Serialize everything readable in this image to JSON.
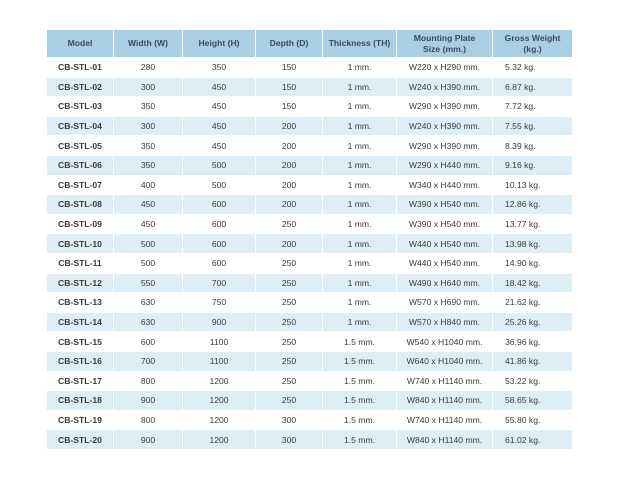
{
  "table": {
    "headers": {
      "model": "Model",
      "width": "Width (W)",
      "height": "Height (H)",
      "depth": "Depth (D)",
      "thickness": "Thickness (TH)",
      "mounting_line1": "Mounting Plate",
      "mounting_line2": "Size (mm.)",
      "weight_line1": "Gross Weight",
      "weight_line2": "(kg.)"
    },
    "rows": [
      {
        "model": "CB-STL-01",
        "width": "280",
        "height": "350",
        "depth": "150",
        "thickness": "1 mm.",
        "mounting": "W220 x H290 mm.",
        "weight": "5.32 kg."
      },
      {
        "model": "CB-STL-02",
        "width": "300",
        "height": "450",
        "depth": "150",
        "thickness": "1 mm.",
        "mounting": "W240 x H390 mm.",
        "weight": "6.87 kg."
      },
      {
        "model": "CB-STL-03",
        "width": "350",
        "height": "450",
        "depth": "150",
        "thickness": "1 mm.",
        "mounting": "W290 x H390 mm.",
        "weight": "7.72 kg."
      },
      {
        "model": "CB-STL-04",
        "width": "300",
        "height": "450",
        "depth": "200",
        "thickness": "1 mm.",
        "mounting": "W240 x H390 mm.",
        "weight": "7.55 kg."
      },
      {
        "model": "CB-STL-05",
        "width": "350",
        "height": "450",
        "depth": "200",
        "thickness": "1 mm.",
        "mounting": "W290 x H390 mm.",
        "weight": "8.39 kg."
      },
      {
        "model": "CB-STL-06",
        "width": "350",
        "height": "500",
        "depth": "200",
        "thickness": "1 mm.",
        "mounting": "W290 x H440 mm.",
        "weight": "9.16 kg."
      },
      {
        "model": "CB-STL-07",
        "width": "400",
        "height": "500",
        "depth": "200",
        "thickness": "1 mm.",
        "mounting": "W340 x H440 mm.",
        "weight": "10.13 kg."
      },
      {
        "model": "CB-STL-08",
        "width": "450",
        "height": "600",
        "depth": "200",
        "thickness": "1 mm.",
        "mounting": "W390 x H540 mm.",
        "weight": "12.86 kg."
      },
      {
        "model": "CB-STL-09",
        "width": "450",
        "height": "600",
        "depth": "250",
        "thickness": "1 mm.",
        "mounting": "W390 x H540 mm.",
        "weight": "13.77 kg."
      },
      {
        "model": "CB-STL-10",
        "width": "500",
        "height": "600",
        "depth": "200",
        "thickness": "1 mm.",
        "mounting": "W440 x H540 mm.",
        "weight": "13.98 kg."
      },
      {
        "model": "CB-STL-11",
        "width": "500",
        "height": "600",
        "depth": "250",
        "thickness": "1 mm.",
        "mounting": "W440 x H540 mm.",
        "weight": "14.90 kg."
      },
      {
        "model": "CB-STL-12",
        "width": "550",
        "height": "700",
        "depth": "250",
        "thickness": "1 mm.",
        "mounting": "W490 x H640 mm.",
        "weight": "18.42 kg."
      },
      {
        "model": "CB-STL-13",
        "width": "630",
        "height": "750",
        "depth": "250",
        "thickness": "1 mm.",
        "mounting": "W570 x H690 mm.",
        "weight": "21.62 kg."
      },
      {
        "model": "CB-STL-14",
        "width": "630",
        "height": "900",
        "depth": "250",
        "thickness": "1 mm.",
        "mounting": "W570 x H840 mm.",
        "weight": "25.26 kg."
      },
      {
        "model": "CB-STL-15",
        "width": "600",
        "height": "1100",
        "depth": "250",
        "thickness": "1.5 mm.",
        "mounting": "W540 x H1040 mm.",
        "weight": "36.96 kg."
      },
      {
        "model": "CB-STL-16",
        "width": "700",
        "height": "1100",
        "depth": "250",
        "thickness": "1.5 mm.",
        "mounting": "W640 x H1040 mm.",
        "weight": "41.86 kg."
      },
      {
        "model": "CB-STL-17",
        "width": "800",
        "height": "1200",
        "depth": "250",
        "thickness": "1.5 mm.",
        "mounting": "W740 x H1140 mm.",
        "weight": "53.22 kg."
      },
      {
        "model": "CB-STL-18",
        "width": "900",
        "height": "1200",
        "depth": "250",
        "thickness": "1.5 mm.",
        "mounting": "W840 x H1140 mm.",
        "weight": "58.65 kg."
      },
      {
        "model": "CB-STL-19",
        "width": "800",
        "height": "1200",
        "depth": "300",
        "thickness": "1.5 mm.",
        "mounting": "W740 x H1140 mm.",
        "weight": "55.80 kg."
      },
      {
        "model": "CB-STL-20",
        "width": "900",
        "height": "1200",
        "depth": "300",
        "thickness": "1.5 mm.",
        "mounting": "W840 x H1140 mm.",
        "weight": "61.02 kg."
      }
    ]
  },
  "colors": {
    "header_bg": "#a9cfe5",
    "header_text": "#3a4a5c",
    "row_alt_bg": "#ddeef7",
    "row_bg": "#ffffff",
    "cell_text": "#3a3a3a"
  }
}
